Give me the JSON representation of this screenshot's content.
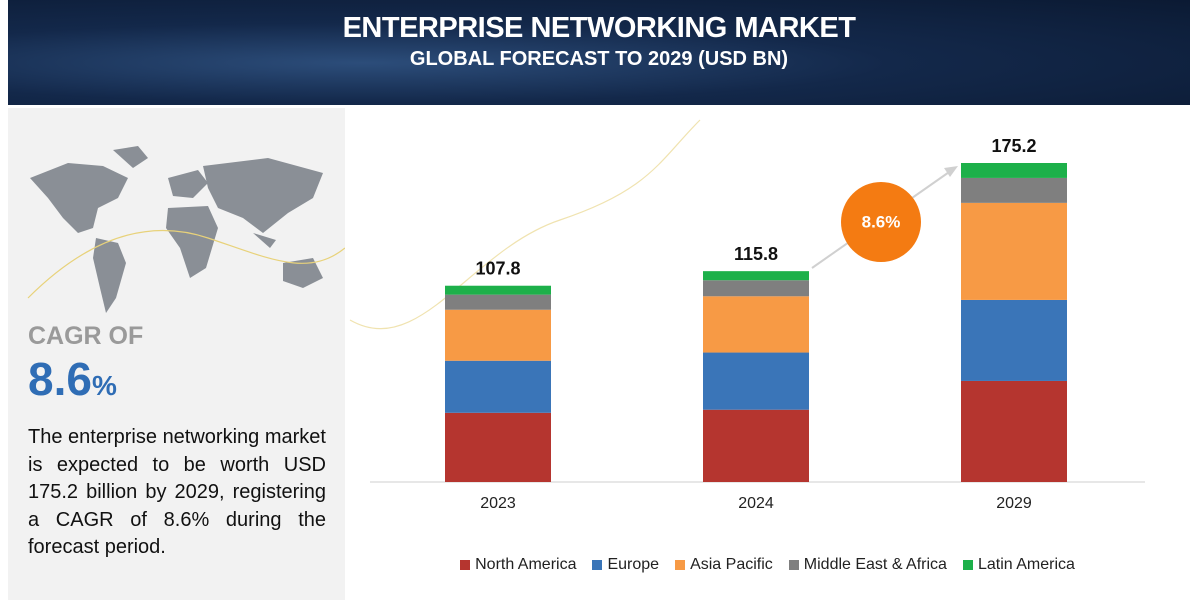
{
  "header": {
    "title": "ENTERPRISE NETWORKING MARKET",
    "subtitle": "GLOBAL FORECAST TO 2029 (USD BN)"
  },
  "sidebar": {
    "cagr_label": "CAGR OF",
    "cagr_value": "8.6",
    "cagr_unit": "%",
    "description": "The enterprise networking market is expected to be worth USD 175.2 billion by 2029, registering a CAGR of 8.6% during the forecast period."
  },
  "chart_data": {
    "type": "bar",
    "stacked": true,
    "categories": [
      "2023",
      "2024",
      "2029"
    ],
    "series": [
      {
        "name": "North America",
        "color": "#b5352f",
        "values": [
          38.0,
          39.7,
          55.5
        ]
      },
      {
        "name": "Europe",
        "color": "#3a75b8",
        "values": [
          28.6,
          31.4,
          44.5
        ]
      },
      {
        "name": "Asia Pacific",
        "color": "#f79a45",
        "values": [
          28.0,
          30.9,
          53.3
        ]
      },
      {
        "name": "Middle East & Africa",
        "color": "#7f7f7f",
        "values": [
          8.3,
          8.8,
          13.7
        ]
      },
      {
        "name": "Latin America",
        "color": "#1db04a",
        "values": [
          4.9,
          5.0,
          8.2
        ]
      }
    ],
    "totals": [
      107.8,
      115.8,
      175.2
    ],
    "annotation": "8.6%"
  }
}
